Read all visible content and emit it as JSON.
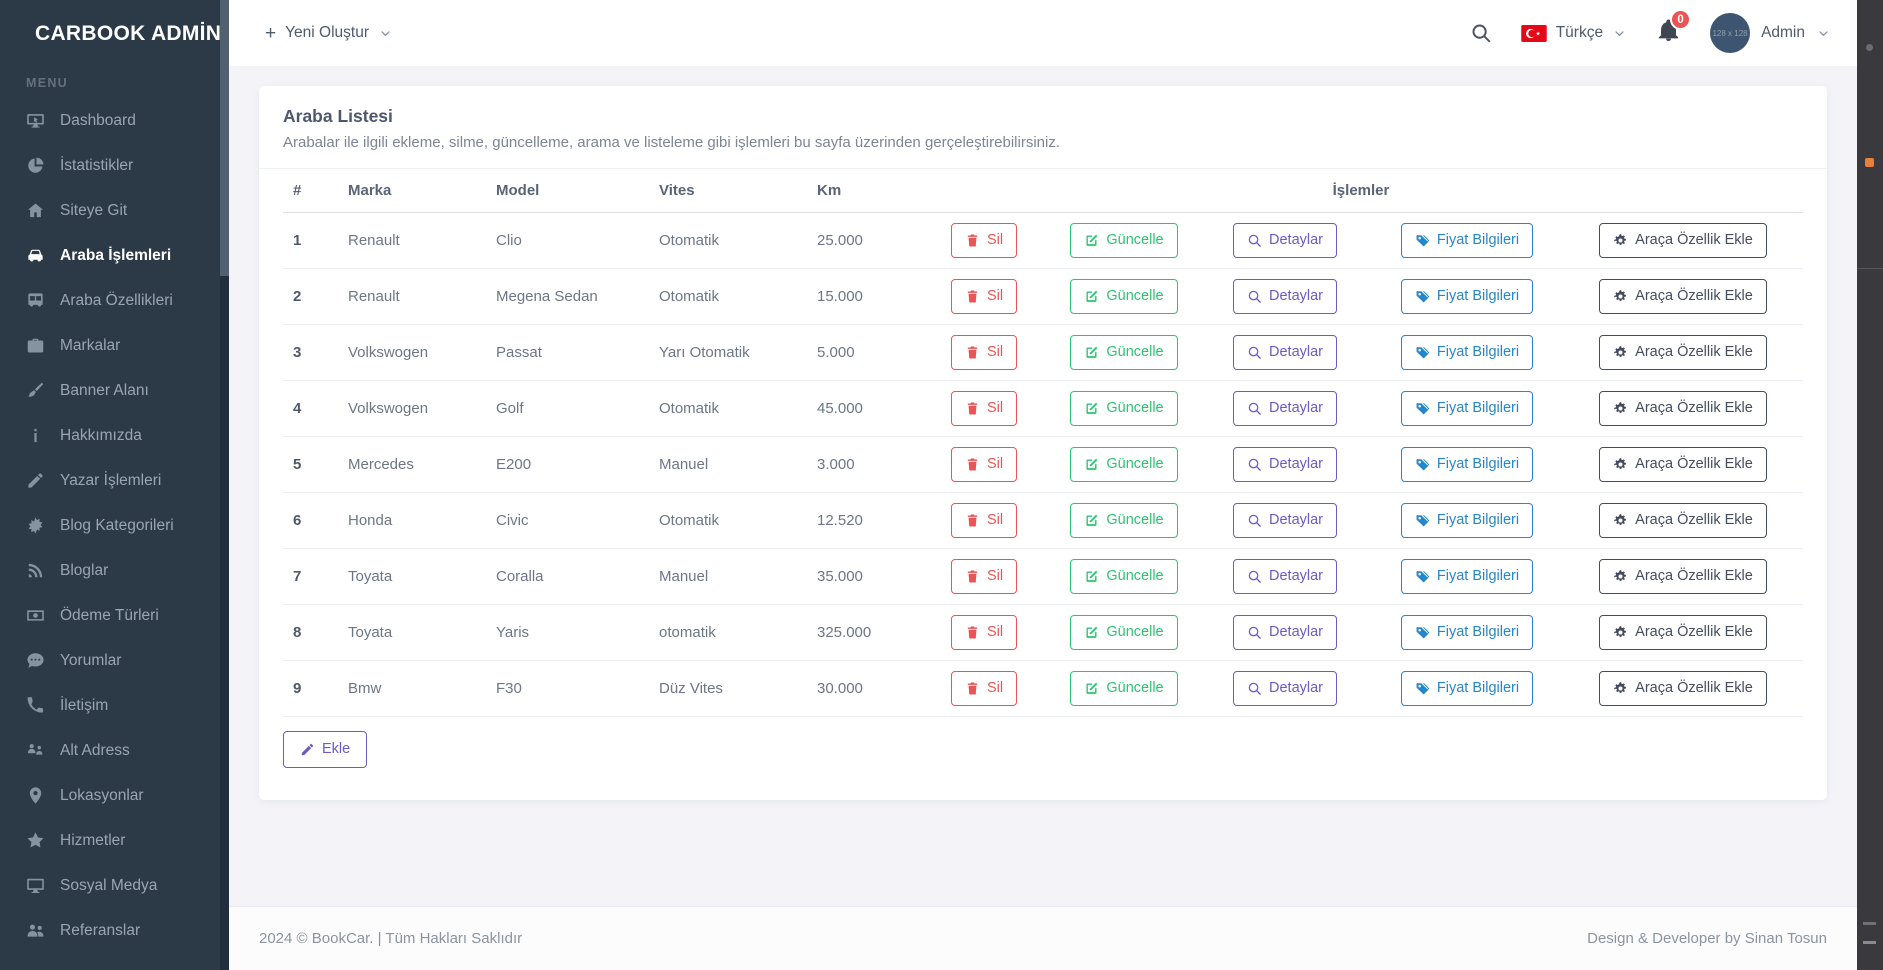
{
  "brand": {
    "title": "CARBOOK ADMİN",
    "icon": "home"
  },
  "sidebar": {
    "section_label": "MENU",
    "items": [
      {
        "label": "Dashboard",
        "icon": "dashboard",
        "active": false
      },
      {
        "label": "İstatistikler",
        "icon": "pie",
        "active": false
      },
      {
        "label": "Siteye Git",
        "icon": "home",
        "active": false
      },
      {
        "label": "Araba İşlemleri",
        "icon": "car",
        "active": true
      },
      {
        "label": "Araba Özellikleri",
        "icon": "bus",
        "active": false
      },
      {
        "label": "Markalar",
        "icon": "briefcase",
        "active": false
      },
      {
        "label": "Banner Alanı",
        "icon": "brush",
        "active": false
      },
      {
        "label": "Hakkımızda",
        "icon": "info",
        "active": false
      },
      {
        "label": "Yazar İşlemleri",
        "icon": "pencil",
        "active": false
      },
      {
        "label": "Blog Kategorileri",
        "icon": "burst",
        "active": false
      },
      {
        "label": "Bloglar",
        "icon": "blog",
        "active": false
      },
      {
        "label": "Ödeme Türleri",
        "icon": "money",
        "active": false
      },
      {
        "label": "Yorumlar",
        "icon": "comment",
        "active": false
      },
      {
        "label": "İletişim",
        "icon": "phone",
        "active": false
      },
      {
        "label": "Alt Adress",
        "icon": "map-users",
        "active": false
      },
      {
        "label": "Lokasyonlar",
        "icon": "pin",
        "active": false
      },
      {
        "label": "Hizmetler",
        "icon": "star",
        "active": false
      },
      {
        "label": "Sosyal Medya",
        "icon": "monitor",
        "active": false
      },
      {
        "label": "Referanslar",
        "icon": "users",
        "active": false
      }
    ]
  },
  "topbar": {
    "new_button": "Yeni Oluştur",
    "search_icon": "search",
    "language": "Türkçe",
    "flag_icon": "turkish-flag",
    "notifications_icon": "bell",
    "notification_count": "0",
    "avatar_placeholder": "128 x 128",
    "user_name": "Admin",
    "dropdown_icon": "chevron-down"
  },
  "page": {
    "title": "Araba Listesi",
    "description": "Arabalar ile ilgili ekleme, silme, güncelleme, arama ve listeleme gibi işlemleri bu sayfa üzerinden gerçeleştirebilirsiniz."
  },
  "table": {
    "headers": {
      "index": "#",
      "brand": "Marka",
      "model": "Model",
      "gear": "Vites",
      "km": "Km",
      "actions": "İşlemler"
    },
    "actions": [
      {
        "key": "delete",
        "label": "Sil",
        "icon": "trash",
        "color": "#ea5455"
      },
      {
        "key": "update",
        "label": "Güncelle",
        "icon": "edit",
        "color": "#28c76f"
      },
      {
        "key": "details",
        "label": "Detaylar",
        "icon": "search",
        "color": "#6c5bc4"
      },
      {
        "key": "price",
        "label": "Fiyat Bilgileri",
        "icon": "tags",
        "color": "#2487cb"
      },
      {
        "key": "feature",
        "label": "Araça Özellik Ekle",
        "icon": "gear",
        "color": "#454c60"
      }
    ],
    "rows": [
      {
        "index": "1",
        "brand": "Renault",
        "model": "Clio",
        "gear": "Otomatik",
        "km": "25.000"
      },
      {
        "index": "2",
        "brand": "Renault",
        "model": "Megena Sedan",
        "gear": "Otomatik",
        "km": "15.000"
      },
      {
        "index": "3",
        "brand": "Volkswogen",
        "model": "Passat",
        "gear": "Yarı Otomatik",
        "km": "5.000"
      },
      {
        "index": "4",
        "brand": "Volkswogen",
        "model": "Golf",
        "gear": "Otomatik",
        "km": "45.000"
      },
      {
        "index": "5",
        "brand": "Mercedes",
        "model": "E200",
        "gear": "Manuel",
        "km": "3.000"
      },
      {
        "index": "6",
        "brand": "Honda",
        "model": "Civic",
        "gear": "Otomatik",
        "km": "12.520"
      },
      {
        "index": "7",
        "brand": "Toyata",
        "model": "Coralla",
        "gear": "Manuel",
        "km": "35.000"
      },
      {
        "index": "8",
        "brand": "Toyata",
        "model": "Yaris",
        "gear": "otomatik",
        "km": "325.000"
      },
      {
        "index": "9",
        "brand": "Bmw",
        "model": "F30",
        "gear": "Düz Vites",
        "km": "30.000"
      }
    ],
    "add_button": {
      "label": "Ekle",
      "icon": "pencil",
      "color": "#6c5bc4"
    }
  },
  "footer": {
    "left": "2024 © BookCar. | Tüm Hakları Saklıdır",
    "right": "Design & Developer by Sinan Tosun"
  }
}
